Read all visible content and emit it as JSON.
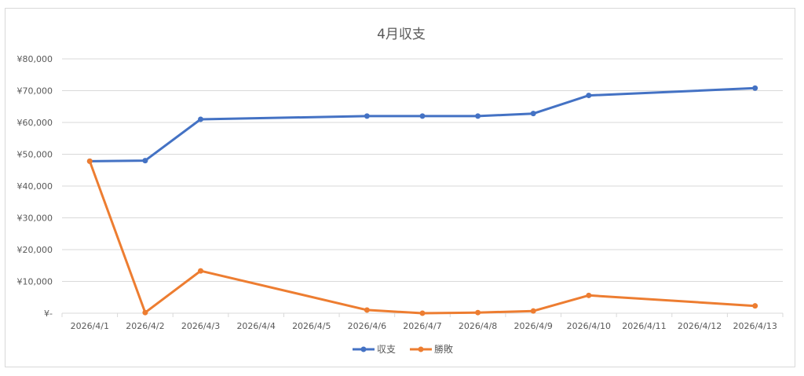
{
  "chart_data": {
    "type": "line",
    "title": "4月収支",
    "xlabel": "",
    "ylabel": "",
    "categories": [
      "2026/4/1",
      "2026/4/2",
      "2026/4/3",
      "2026/4/4",
      "2026/4/5",
      "2026/4/6",
      "2026/4/7",
      "2026/4/8",
      "2026/4/9",
      "2026/4/10",
      "2026/4/11",
      "2026/4/12",
      "2026/4/13"
    ],
    "y_ticks": [
      "¥-",
      "¥10,000",
      "¥20,000",
      "¥30,000",
      "¥40,000",
      "¥50,000",
      "¥60,000",
      "¥70,000",
      "¥80,000"
    ],
    "ylim": [
      0,
      80000
    ],
    "grid": true,
    "legend_position": "bottom",
    "series": [
      {
        "name": "収支",
        "color": "#4472c4",
        "points": [
          {
            "x": "2026/4/1",
            "y": 47800
          },
          {
            "x": "2026/4/2",
            "y": 48000
          },
          {
            "x": "2026/4/3",
            "y": 61000
          },
          {
            "x": "2026/4/6",
            "y": 62000
          },
          {
            "x": "2026/4/7",
            "y": 62000
          },
          {
            "x": "2026/4/8",
            "y": 62000
          },
          {
            "x": "2026/4/9",
            "y": 62800
          },
          {
            "x": "2026/4/10",
            "y": 68500
          },
          {
            "x": "2026/4/13",
            "y": 70800
          }
        ]
      },
      {
        "name": "勝敗",
        "color": "#ed7d31",
        "points": [
          {
            "x": "2026/4/1",
            "y": 47800
          },
          {
            "x": "2026/4/2",
            "y": 200
          },
          {
            "x": "2026/4/3",
            "y": 13300
          },
          {
            "x": "2026/4/6",
            "y": 1000
          },
          {
            "x": "2026/4/7",
            "y": 0
          },
          {
            "x": "2026/4/8",
            "y": 200
          },
          {
            "x": "2026/4/9",
            "y": 700
          },
          {
            "x": "2026/4/10",
            "y": 5600
          },
          {
            "x": "2026/4/13",
            "y": 2300
          }
        ]
      }
    ]
  }
}
